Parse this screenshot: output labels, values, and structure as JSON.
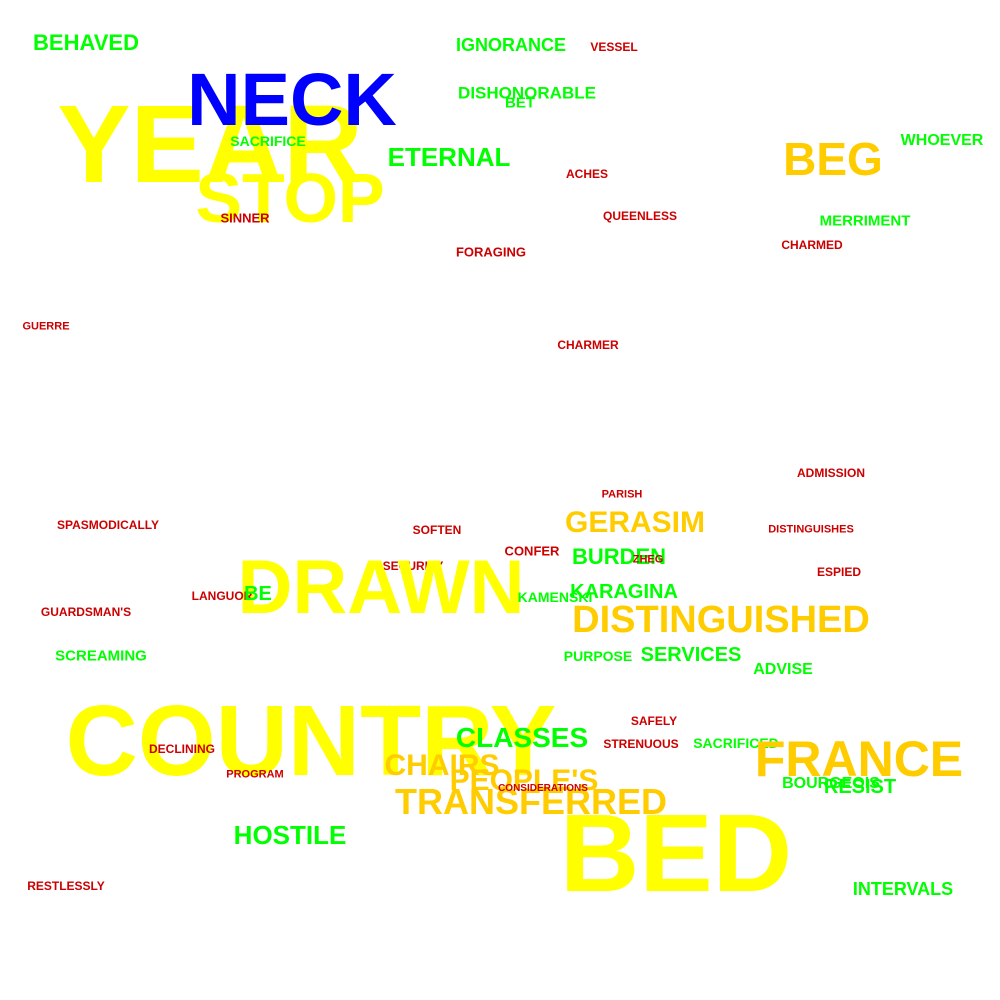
{
  "palette": {
    "blue": "#0000ff",
    "yellow": "#ffff00",
    "gold": "#ffcc00",
    "green": "#00ff00",
    "red": "#cc0000"
  },
  "words": [
    {
      "text": "YEAR",
      "color": "yellow"
    },
    {
      "text": "NECK",
      "color": "blue"
    },
    {
      "text": "STOP",
      "color": "yellow"
    },
    {
      "text": "SACRIFICE",
      "color": "green"
    },
    {
      "text": "SINNER",
      "color": "red"
    },
    {
      "text": "BEHAVED",
      "color": "green"
    },
    {
      "text": "IGNORANCE",
      "color": "green"
    },
    {
      "text": "VESSEL",
      "color": "red"
    },
    {
      "text": "DISHONORABLE",
      "color": "green"
    },
    {
      "text": "BET",
      "color": "green"
    },
    {
      "text": "ETERNAL",
      "color": "green"
    },
    {
      "text": "BEG",
      "color": "gold"
    },
    {
      "text": "WHOEVER",
      "color": "green"
    },
    {
      "text": "ACHES",
      "color": "red"
    },
    {
      "text": "QUEENLESS",
      "color": "red"
    },
    {
      "text": "MERRIMENT",
      "color": "green"
    },
    {
      "text": "CHARMED",
      "color": "red"
    },
    {
      "text": "FORAGING",
      "color": "red"
    },
    {
      "text": "GUERRE",
      "color": "red"
    },
    {
      "text": "CHARMER",
      "color": "red"
    },
    {
      "text": "ADMISSION",
      "color": "red"
    },
    {
      "text": "PARISH",
      "color": "red"
    },
    {
      "text": "SPASMODICALLY",
      "color": "red"
    },
    {
      "text": "SOFTEN",
      "color": "red"
    },
    {
      "text": "GERASIM",
      "color": "gold"
    },
    {
      "text": "DISTINGUISHES",
      "color": "red"
    },
    {
      "text": "CONFER",
      "color": "red"
    },
    {
      "text": "BURDEN",
      "color": "green"
    },
    {
      "text": "ZHEG",
      "color": "red"
    },
    {
      "text": "SECURITY",
      "color": "red"
    },
    {
      "text": "DRAWN",
      "color": "yellow"
    },
    {
      "text": "ESPIED",
      "color": "red"
    },
    {
      "text": "LANGUOR",
      "color": "red"
    },
    {
      "text": "BE",
      "color": "green"
    },
    {
      "text": "KARAGINA",
      "color": "green"
    },
    {
      "text": "KAMENSKI",
      "color": "green"
    },
    {
      "text": "GUARDSMAN'S",
      "color": "red"
    },
    {
      "text": "DISTINGUISHED",
      "color": "gold"
    },
    {
      "text": "SCREAMING",
      "color": "green"
    },
    {
      "text": "PURPOSE",
      "color": "green"
    },
    {
      "text": "SERVICES",
      "color": "green"
    },
    {
      "text": "ADVISE",
      "color": "green"
    },
    {
      "text": "COUNTRY",
      "color": "yellow"
    },
    {
      "text": "SAFELY",
      "color": "red"
    },
    {
      "text": "CLASSES",
      "color": "green"
    },
    {
      "text": "STRENUOUS",
      "color": "red"
    },
    {
      "text": "SACRIFICED",
      "color": "green"
    },
    {
      "text": "DECLINING",
      "color": "red"
    },
    {
      "text": "FRANCE",
      "color": "gold"
    },
    {
      "text": "CHAIRS",
      "color": "gold"
    },
    {
      "text": "PEOPLE'S",
      "color": "gold"
    },
    {
      "text": "TRANSFERRED",
      "color": "gold"
    },
    {
      "text": "CONSIDERATIONS",
      "color": "red"
    },
    {
      "text": "PROGRAM",
      "color": "red"
    },
    {
      "text": "BOURGEOIS",
      "color": "green"
    },
    {
      "text": "RESIST",
      "color": "green"
    },
    {
      "text": "BED",
      "color": "yellow"
    },
    {
      "text": "HOSTILE",
      "color": "green"
    },
    {
      "text": "RESTLESSLY",
      "color": "red"
    },
    {
      "text": "INTERVALS",
      "color": "green"
    }
  ]
}
